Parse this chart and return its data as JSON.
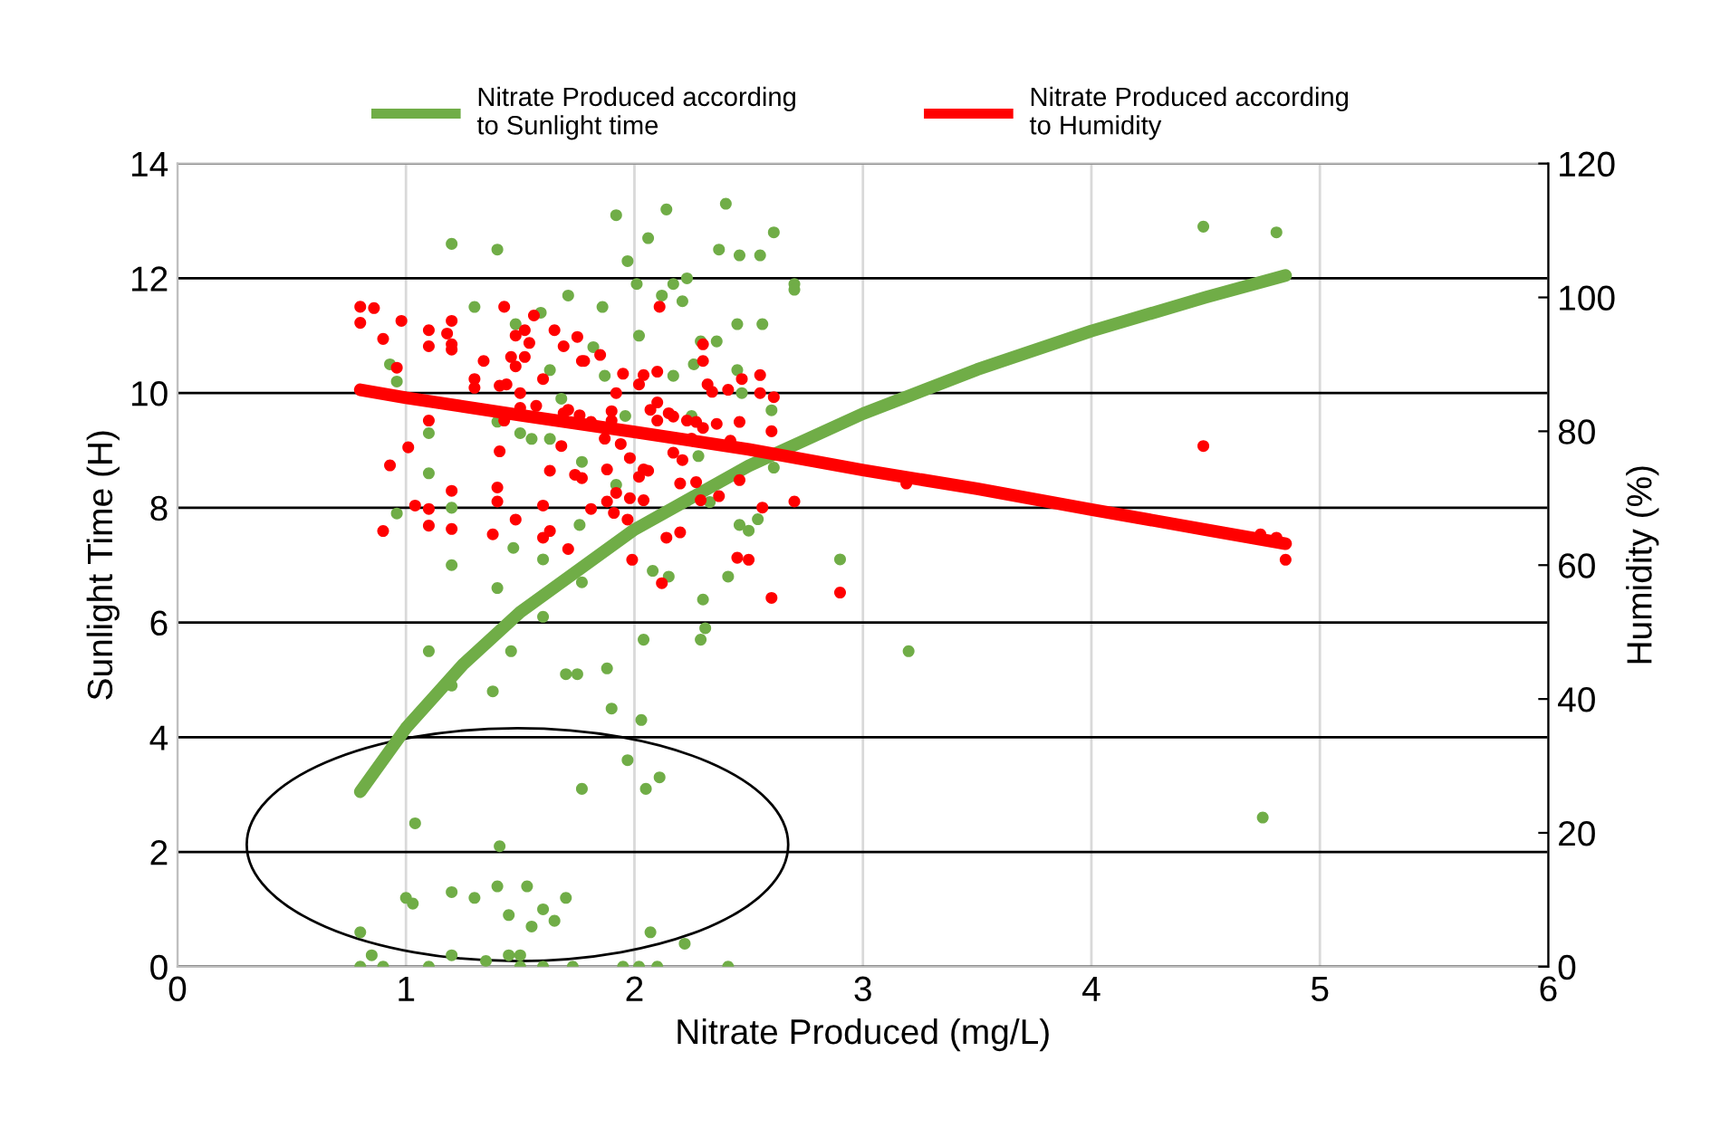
{
  "chart_data": {
    "type": "scatter",
    "xlabel": "Nitrate Produced (mg/L)",
    "ylabel": "Sunlight Time (H)",
    "y2label": "Humidity (%)",
    "xlim": [
      0,
      6
    ],
    "xticks": [
      0,
      1,
      2,
      3,
      4,
      5,
      6
    ],
    "ylim": [
      0,
      14
    ],
    "yticks": [
      0,
      2,
      4,
      6,
      8,
      10,
      12,
      14
    ],
    "y2lim": [
      0,
      120
    ],
    "y2ticks": [
      0,
      20,
      40,
      60,
      80,
      100,
      120
    ],
    "grid": true,
    "legend": "top",
    "series": [
      {
        "type": "scatter",
        "marker": "circle",
        "color": "#70ad47",
        "axis": "y",
        "x": [
          0.8,
          0.85,
          0.8,
          0.9,
          1.0,
          1.03,
          1.04,
          1.1,
          1.2,
          1.2,
          1.3,
          1.35,
          1.41,
          1.4,
          1.45,
          1.45,
          1.5,
          1.5,
          1.53,
          1.55,
          1.6,
          1.6,
          1.65,
          1.7,
          1.73,
          1.95,
          2.07,
          2.02,
          2.1,
          2.22,
          2.41,
          1.1,
          1.2,
          1.38,
          1.2,
          1.4,
          1.7,
          1.75,
          1.46,
          1.6,
          1.6,
          1.77,
          1.77,
          2.04,
          2.29,
          2.31,
          2.3,
          2.41,
          2.08,
          2.15,
          2.9,
          1.88,
          1.9,
          2.03,
          1.97,
          2.05,
          2.11,
          3.2,
          4.75,
          4.49,
          4.81,
          1.2,
          1.4,
          1.71,
          1.3,
          1.59,
          1.48,
          0.93,
          0.96,
          1.63,
          1.68,
          1.4,
          1.5,
          1.55,
          1.63,
          1.1,
          1.77,
          1.1,
          0.96,
          1.2,
          1.76,
          1.47,
          1.92,
          2.14,
          2.4,
          2.06,
          1.97,
          2.37,
          2.46,
          2.55,
          2.61,
          2.01,
          2.12,
          2.17,
          2.23,
          2.21,
          2.7,
          2.7,
          1.86,
          2.45,
          2.56,
          2.02,
          2.29,
          2.36,
          2.26,
          2.17,
          1.87,
          1.82,
          2.45,
          2.47,
          2.6,
          2.61,
          2.33,
          1.92,
          2.46,
          2.5,
          2.54,
          2.28,
          1.96,
          2.25
        ],
        "values": [
          0.6,
          0.2,
          0,
          0,
          1.2,
          1.1,
          2.5,
          0,
          1.3,
          0.2,
          1.2,
          0.1,
          2.1,
          1.4,
          0.9,
          0.2,
          0.2,
          0,
          1.4,
          0.7,
          1.0,
          0,
          0.8,
          1.2,
          0,
          0,
          0.6,
          0,
          0,
          0.4,
          0,
          5.5,
          4.9,
          4.8,
          7.0,
          6.6,
          5.1,
          5.1,
          5.5,
          6.1,
          7.1,
          6.7,
          3.1,
          5.7,
          5.7,
          5.9,
          6.4,
          6.8,
          6.9,
          6.8,
          7.1,
          5.2,
          4.5,
          4.3,
          3.6,
          3.1,
          3.3,
          5.5,
          2.6,
          12.9,
          12.8,
          12.6,
          12.5,
          11.7,
          11.5,
          11.4,
          11.2,
          10.5,
          10.2,
          10.4,
          9.9,
          9.5,
          9.3,
          9.2,
          9.2,
          9.3,
          8.8,
          8.6,
          7.9,
          8.0,
          7.7,
          7.3,
          13.1,
          13.2,
          13.3,
          12.7,
          12.3,
          12.5,
          12.4,
          12.4,
          12.8,
          11.9,
          11.7,
          11.9,
          12.0,
          11.6,
          11.9,
          11.8,
          11.5,
          11.2,
          11.2,
          11.0,
          10.9,
          10.9,
          10.5,
          10.3,
          10.3,
          10.8,
          10.4,
          10.0,
          9.7,
          8.7,
          8.1,
          8.4,
          7.7,
          7.6,
          7.8,
          8.9,
          9.6,
          9.6
        ]
      },
      {
        "type": "scatter",
        "marker": "circle",
        "color": "#ff0000",
        "axis": "y2",
        "x": [
          0.8,
          0.86,
          0.8,
          0.98,
          0.9,
          1.1,
          1.1,
          1.18,
          1.2,
          1.2,
          1.2,
          1.43,
          1.56,
          1.52,
          1.54,
          1.48,
          1.65,
          1.75,
          1.69,
          1.34,
          1.46,
          1.52,
          1.48,
          1.77,
          1.6,
          1.3,
          1.3,
          1.41,
          1.44,
          0.96,
          1.5,
          1.5,
          1.57,
          1.69,
          1.1,
          1.43,
          1.01,
          1.68,
          1.41,
          0.93,
          1.63,
          1.74,
          1.77,
          1.2,
          1.4,
          1.4,
          1.6,
          1.04,
          1.1,
          1.48,
          1.1,
          1.2,
          0.9,
          1.38,
          1.63,
          1.6,
          1.71,
          2.11,
          2.3,
          2.3,
          1.78,
          1.85,
          1.95,
          2.04,
          2.1,
          2.02,
          2.32,
          2.34,
          2.41,
          2.47,
          2.55,
          2.55,
          2.61,
          1.92,
          1.71,
          1.76,
          1.81,
          1.9,
          1.9,
          2.1,
          2.07,
          2.1,
          2.15,
          2.17,
          2.23,
          2.27,
          2.3,
          2.36,
          2.46,
          2.6,
          2.42,
          2.25,
          1.94,
          2.17,
          1.87,
          1.98,
          2.21,
          1.88,
          2.04,
          2.02,
          2.06,
          2.2,
          2.27,
          2.46,
          1.92,
          1.98,
          2.04,
          2.29,
          2.37,
          1.88,
          1.81,
          1.91,
          1.97,
          2.56,
          2.7,
          2.14,
          2.2,
          1.99,
          2.45,
          2.5,
          2.12,
          2.6,
          2.9,
          3.19,
          4.49,
          4.74,
          4.81,
          4.85
        ],
        "values": [
          98.6,
          98.4,
          96.2,
          96.5,
          93.8,
          95.1,
          92.7,
          94.6,
          96.5,
          93.0,
          92.2,
          98.6,
          97.3,
          95.1,
          93.2,
          94.3,
          95.1,
          94.1,
          92.7,
          90.5,
          91.1,
          91.1,
          89.7,
          90.5,
          87.8,
          87.8,
          86.5,
          86.8,
          87.0,
          89.5,
          85.7,
          83.5,
          83.8,
          82.7,
          81.6,
          81.6,
          77.6,
          77.8,
          77.0,
          74.9,
          74.1,
          73.5,
          73.0,
          71.1,
          71.6,
          69.5,
          68.9,
          68.9,
          68.4,
          66.8,
          65.9,
          65.4,
          65.1,
          64.6,
          65.1,
          64.1,
          62.4,
          98.6,
          93.0,
          90.5,
          90.5,
          91.4,
          88.6,
          88.4,
          88.9,
          87.0,
          87.0,
          85.9,
          86.2,
          87.8,
          88.4,
          85.7,
          85.1,
          85.7,
          83.2,
          82.4,
          81.4,
          83.0,
          81.6,
          84.3,
          83.2,
          81.6,
          82.7,
          82.2,
          81.6,
          81.4,
          80.5,
          81.1,
          81.4,
          80.0,
          78.6,
          78.9,
          78.1,
          76.8,
          78.9,
          76.0,
          75.7,
          74.3,
          74.3,
          73.2,
          74.1,
          72.2,
          72.4,
          72.7,
          70.8,
          70.0,
          69.7,
          69.7,
          70.3,
          69.5,
          68.4,
          67.8,
          66.8,
          68.6,
          69.5,
          64.1,
          64.9,
          60.8,
          61.1,
          60.8,
          57.3,
          55.1,
          55.9,
          72.2,
          77.8,
          64.6,
          64.1,
          60.8
        ]
      },
      {
        "type": "line",
        "name": "Nitrate Produced according to Sunlight time",
        "color": "#70ad47",
        "axis": "y",
        "line_style": "solid",
        "x": [
          0.8,
          1,
          1.25,
          1.5,
          2,
          2.5,
          3,
          3.5,
          4,
          4.5,
          4.85
        ],
        "values": [
          3.05,
          4.16,
          5.27,
          6.18,
          7.62,
          8.73,
          9.64,
          10.41,
          11.08,
          11.67,
          12.05
        ]
      },
      {
        "type": "line",
        "name": "Nitrate Produced according to Humidity",
        "color": "#ff0000",
        "axis": "y2",
        "line_style": "solid",
        "x": [
          0.8,
          1,
          1.5,
          2,
          2.5,
          3,
          3.5,
          4,
          4.5,
          4.85
        ],
        "values": [
          86.2,
          85.0,
          82.4,
          79.9,
          77.3,
          74.2,
          71.4,
          68.3,
          65.3,
          63.2
        ]
      }
    ]
  }
}
